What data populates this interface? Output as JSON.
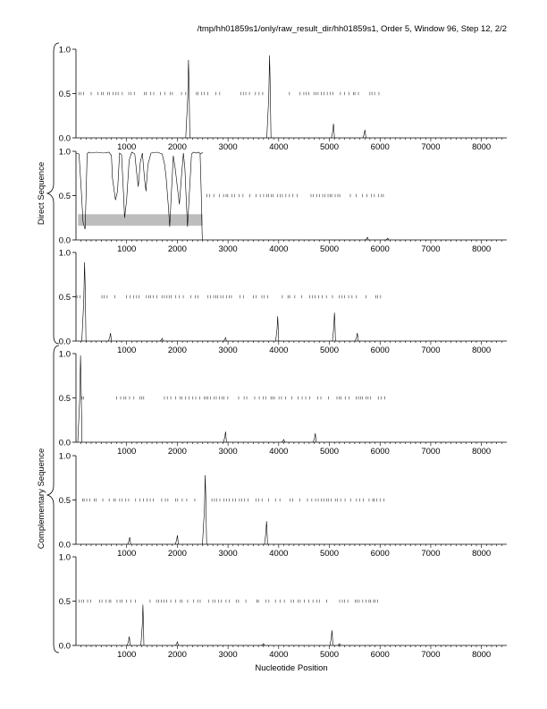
{
  "header": {
    "title": "/tmp/hh01859s1/only/raw_result_dir/hh01859s1, Order 5, Window 96, Step 12, 2/2"
  },
  "brackets": {
    "direct_label": "Direct Sequence",
    "complementary_label": "Complementary Sequence"
  },
  "chart_data": [
    {
      "type": "line",
      "frame": "direct-1",
      "xlabel": "",
      "ylabel": "",
      "xlim": [
        0,
        8500
      ],
      "ylim": [
        0,
        1
      ],
      "x_ticks": [
        "1000",
        "2000",
        "3000",
        "4000",
        "5000",
        "6000",
        "7000",
        "8000"
      ],
      "y_ticks": [
        "0.0",
        "0.5",
        "1.0"
      ],
      "peaks": [
        [
          2220,
          0.88
        ],
        [
          3820,
          0.93
        ],
        [
          5080,
          0.16
        ],
        [
          5700,
          0.09
        ]
      ],
      "orf_marks_y": 0.5,
      "orf_range": [
        60,
        6050
      ],
      "gaps": [
        [
          2200,
          2330
        ],
        [
          3780,
          3880
        ],
        [
          5120,
          5180
        ]
      ],
      "highlight": null,
      "segments": null
    },
    {
      "type": "line",
      "frame": "direct-2",
      "xlabel": "",
      "ylabel": "",
      "xlim": [
        0,
        8500
      ],
      "ylim": [
        0,
        1
      ],
      "x_ticks": [
        "1000",
        "2000",
        "3000",
        "4000",
        "5000",
        "6000",
        "7000",
        "8000"
      ],
      "y_ticks": [
        "0.0",
        "0.5",
        "1.0"
      ],
      "peaks": [
        [
          5750,
          0.03
        ],
        [
          6150,
          0.02
        ]
      ],
      "orf_marks_y": 0.5,
      "orf_range": [
        2500,
        6100
      ],
      "gaps": [],
      "highlight": {
        "x": [
          40,
          2500
        ],
        "y": [
          0.16,
          0.29
        ]
      },
      "segments": [
        [
          [
            0,
            0.98
          ],
          [
            60,
            0.97
          ],
          [
            100,
            0.6
          ],
          [
            140,
            0.2
          ],
          [
            180,
            0.12
          ],
          [
            200,
            0.5
          ],
          [
            220,
            0.97
          ],
          [
            250,
            0.99
          ],
          [
            300,
            0.98
          ],
          [
            400,
            0.99
          ],
          [
            550,
            0.98
          ],
          [
            650,
            0.99
          ],
          [
            700,
            0.95
          ],
          [
            720,
            0.7
          ],
          [
            780,
            0.45
          ],
          [
            820,
            0.55
          ],
          [
            860,
            0.98
          ],
          [
            900,
            0.96
          ],
          [
            940,
            0.5
          ],
          [
            960,
            0.25
          ],
          [
            1000,
            0.45
          ],
          [
            1050,
            0.9
          ],
          [
            1100,
            0.99
          ],
          [
            1160,
            0.97
          ],
          [
            1200,
            0.75
          ],
          [
            1230,
            0.6
          ],
          [
            1270,
            0.88
          ],
          [
            1310,
            0.98
          ],
          [
            1350,
            0.7
          ],
          [
            1380,
            0.55
          ],
          [
            1420,
            0.85
          ],
          [
            1480,
            0.98
          ],
          [
            1600,
            0.99
          ],
          [
            1700,
            0.97
          ],
          [
            1750,
            0.85
          ],
          [
            1780,
            0.7
          ],
          [
            1820,
            0.4
          ],
          [
            1850,
            0.15
          ],
          [
            1880,
            0.5
          ],
          [
            1920,
            0.95
          ],
          [
            1960,
            0.8
          ],
          [
            2000,
            0.6
          ],
          [
            2040,
            0.4
          ],
          [
            2080,
            0.7
          ],
          [
            2120,
            0.98
          ],
          [
            2150,
            0.8
          ],
          [
            2180,
            0.4
          ],
          [
            2200,
            0.15
          ],
          [
            2240,
            0.55
          ],
          [
            2280,
            0.97
          ],
          [
            2320,
            0.99
          ],
          [
            2380,
            0.98
          ],
          [
            2420,
            0.99
          ],
          [
            2460,
            0.97
          ],
          [
            2500,
            0.99
          ]
        ],
        [
          [
            2450,
            0.97
          ],
          [
            2470,
            0.55
          ],
          [
            2490,
            0.05
          ],
          [
            2500,
            0.0
          ]
        ]
      ]
    },
    {
      "type": "line",
      "frame": "direct-3",
      "xlabel": "",
      "ylabel": "",
      "xlim": [
        0,
        8500
      ],
      "ylim": [
        0,
        1
      ],
      "x_ticks": [
        "1000",
        "2000",
        "3000",
        "4000",
        "5000",
        "6000",
        "7000",
        "8000"
      ],
      "y_ticks": [
        "0.0",
        "0.5",
        "1.0"
      ],
      "peaks": [
        [
          170,
          0.89
        ],
        [
          680,
          0.09
        ],
        [
          1700,
          0.03
        ],
        [
          2950,
          0.04
        ],
        [
          3980,
          0.28
        ],
        [
          5100,
          0.32
        ],
        [
          5550,
          0.09
        ]
      ],
      "orf_marks_y": 0.5,
      "orf_range": [
        20,
        6100
      ],
      "gaps": [
        [
          180,
          400
        ]
      ],
      "highlight": null,
      "segments": null
    },
    {
      "type": "line",
      "frame": "complementary-1",
      "xlabel": "",
      "ylabel": "",
      "xlim": [
        0,
        8500
      ],
      "ylim": [
        0,
        1
      ],
      "x_ticks": [
        "1000",
        "2000",
        "3000",
        "4000",
        "5000",
        "6000",
        "7000",
        "8000"
      ],
      "y_ticks": [
        "0.0",
        "0.5",
        "1.0"
      ],
      "peaks": [
        [
          90,
          0.98
        ],
        [
          2950,
          0.12
        ],
        [
          4720,
          0.1
        ],
        [
          4100,
          0.03
        ]
      ],
      "orf_marks_y": 0.5,
      "orf_range": [
        120,
        6100
      ],
      "gaps": [
        [
          200,
          700
        ]
      ],
      "highlight": null,
      "segments": null
    },
    {
      "type": "line",
      "frame": "complementary-2",
      "xlabel": "",
      "ylabel": "",
      "xlim": [
        0,
        8500
      ],
      "ylim": [
        0,
        1
      ],
      "x_ticks": [
        "1000",
        "2000",
        "3000",
        "4000",
        "5000",
        "6000",
        "7000",
        "8000"
      ],
      "y_ticks": [
        "0.0",
        "0.5",
        "1.0"
      ],
      "peaks": [
        [
          1060,
          0.08
        ],
        [
          2000,
          0.1
        ],
        [
          2550,
          0.78
        ],
        [
          3760,
          0.26
        ]
      ],
      "orf_marks_y": 0.5,
      "orf_range": [
        60,
        6100
      ],
      "gaps": [
        [
          2460,
          2640
        ],
        [
          3720,
          3800
        ]
      ],
      "highlight": null,
      "segments": null
    },
    {
      "type": "line",
      "frame": "complementary-3",
      "xlabel": "Nucleotide Position",
      "ylabel": "",
      "xlim": [
        0,
        8500
      ],
      "ylim": [
        0,
        1
      ],
      "x_ticks": [
        "1000",
        "2000",
        "3000",
        "4000",
        "5000",
        "6000",
        "7000",
        "8000"
      ],
      "y_ticks": [
        "0.0",
        "0.5",
        "1.0"
      ],
      "peaks": [
        [
          1050,
          0.1
        ],
        [
          1320,
          0.46
        ],
        [
          2000,
          0.04
        ],
        [
          3700,
          0.02
        ],
        [
          5050,
          0.17
        ],
        [
          5200,
          0.02
        ]
      ],
      "orf_marks_y": 0.5,
      "orf_range": [
        60,
        6000
      ],
      "gaps": [
        [
          1200,
          1450
        ],
        [
          4950,
          5200
        ]
      ],
      "highlight": null,
      "segments": null
    }
  ]
}
